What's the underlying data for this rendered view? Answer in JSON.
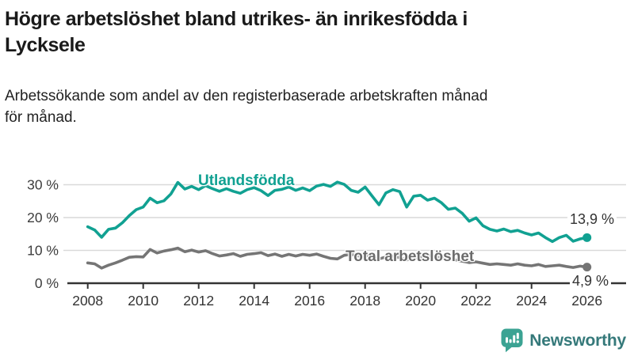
{
  "header": {
    "title_line_1": "Högre arbetslöshet bland utrikes- än inrikesfödda i",
    "title_line_2": "Lycksele",
    "subtitle_line_1": "Arbetssökande som andel av den registerbaserade arbetskraften månad",
    "subtitle_line_2": "för månad."
  },
  "footer": {
    "brand": "Newsworthy"
  },
  "colors": {
    "teal": "#11a192",
    "gray": "#757575",
    "axis": "#333333",
    "grid": "#d9d9d9",
    "tick_label": "#3d3d3d",
    "logo_bubble": "#3ba393",
    "logo_text": "#35797a"
  },
  "chart_data": {
    "type": "line",
    "title": "Högre arbetslöshet bland utrikes- än inrikesfödda i Lycksele",
    "subtitle": "Arbetssökande som andel av den registerbaserade arbetskraften månad för månad.",
    "xlabel": "",
    "ylabel": "",
    "ylim": [
      0,
      33
    ],
    "grid": "horizontal",
    "legend_position": "inline-labels",
    "yticks": {
      "values": [
        0,
        10,
        20,
        30
      ],
      "labels": [
        "0 %",
        "10 %",
        "20 %",
        "30 %"
      ]
    },
    "xticks": {
      "values": [
        2008,
        2010,
        2012,
        2014,
        2016,
        2018,
        2020,
        2022,
        2024,
        2026
      ],
      "labels": [
        "2008",
        "2010",
        "2012",
        "2014",
        "2016",
        "2018",
        "2020",
        "2022",
        "2024",
        "2026"
      ]
    },
    "x": [
      2008,
      2008.25,
      2008.5,
      2008.75,
      2009,
      2009.25,
      2009.5,
      2009.75,
      2010,
      2010.25,
      2010.5,
      2010.75,
      2011,
      2011.25,
      2011.5,
      2011.75,
      2012,
      2012.25,
      2012.5,
      2012.75,
      2013,
      2013.25,
      2013.5,
      2013.75,
      2014,
      2014.25,
      2014.5,
      2014.75,
      2015,
      2015.25,
      2015.5,
      2015.75,
      2016,
      2016.25,
      2016.5,
      2016.75,
      2017,
      2017.25,
      2017.5,
      2017.75,
      2018,
      2018.25,
      2018.5,
      2018.75,
      2019,
      2019.25,
      2019.5,
      2019.75,
      2020,
      2020.25,
      2020.5,
      2020.75,
      2021,
      2021.25,
      2021.5,
      2021.75,
      2022,
      2022.25,
      2022.5,
      2022.75,
      2023,
      2023.25,
      2023.5,
      2023.75,
      2024,
      2024.25,
      2024.5,
      2024.75,
      2025,
      2025.25,
      2025.5,
      2025.75,
      2026
    ],
    "series": [
      {
        "name": "Utlandsfödda",
        "color": "#11a192",
        "end_label": "13,9 %",
        "end_value": 13.9,
        "values": [
          17.2,
          16.2,
          14.0,
          16.4,
          16.8,
          18.4,
          20.6,
          22.4,
          23.2,
          25.9,
          24.5,
          25.1,
          27.2,
          30.7,
          28.7,
          29.5,
          28.5,
          29.7,
          28.8,
          28.0,
          28.8,
          28.0,
          27.4,
          28.5,
          29.1,
          28.2,
          26.7,
          28.3,
          28.6,
          29.3,
          28.3,
          29.0,
          28.2,
          29.6,
          30.1,
          29.5,
          30.8,
          30.1,
          28.3,
          27.7,
          29.3,
          26.6,
          23.9,
          27.5,
          28.5,
          27.9,
          23.2,
          26.5,
          26.8,
          25.3,
          25.9,
          24.5,
          22.5,
          22.9,
          21.3,
          18.9,
          19.9,
          17.5,
          16.4,
          15.9,
          16.5,
          15.7,
          16.1,
          15.3,
          14.7,
          15.3,
          13.9,
          12.7,
          13.9,
          14.6,
          12.8,
          13.5,
          13.9
        ]
      },
      {
        "name": "Total arbetslöshet",
        "color": "#757575",
        "end_label": "4,9 %",
        "end_value": 4.9,
        "values": [
          6.2,
          5.9,
          4.6,
          5.5,
          6.2,
          7.0,
          7.9,
          8.1,
          8.0,
          10.3,
          9.2,
          9.8,
          10.2,
          10.7,
          9.6,
          10.1,
          9.5,
          9.9,
          9.0,
          8.3,
          8.6,
          9.0,
          8.2,
          8.8,
          9.0,
          9.3,
          8.4,
          8.9,
          8.2,
          8.8,
          8.3,
          8.8,
          8.5,
          8.9,
          8.2,
          7.6,
          7.4,
          8.5,
          8.8,
          8.3,
          8.6,
          8.0,
          7.4,
          8.0,
          8.3,
          7.8,
          7.1,
          7.7,
          7.9,
          8.5,
          8.2,
          7.7,
          7.5,
          7.1,
          6.7,
          6.3,
          6.5,
          6.1,
          5.7,
          5.9,
          5.7,
          5.5,
          5.9,
          5.5,
          5.3,
          5.7,
          5.1,
          5.3,
          5.5,
          5.1,
          4.8,
          5.2,
          4.9
        ]
      }
    ]
  }
}
